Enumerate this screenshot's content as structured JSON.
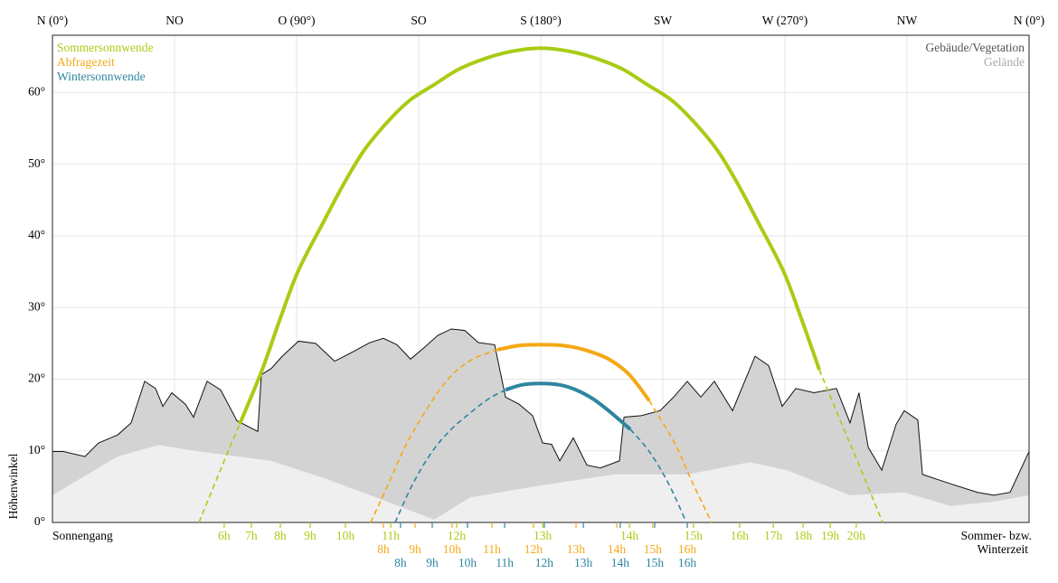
{
  "chart_data": {
    "type": "line",
    "ylabel": "Höhenwinkel",
    "row_label": "Sonnengang",
    "time_note": [
      "Sommer- bzw.",
      "Winterzeit"
    ],
    "xlim": [
      0,
      360
    ],
    "ylim": [
      0,
      68
    ],
    "grid": true,
    "xticks": [
      {
        "value": 0,
        "label": "N (0°)"
      },
      {
        "value": 45,
        "label": "NO"
      },
      {
        "value": 90,
        "label": "O (90°)"
      },
      {
        "value": 135,
        "label": "SO"
      },
      {
        "value": 180,
        "label": "S (180°)"
      },
      {
        "value": 225,
        "label": "SW"
      },
      {
        "value": 270,
        "label": "W (270°)"
      },
      {
        "value": 315,
        "label": "NW"
      },
      {
        "value": 360,
        "label": "N (0°)"
      }
    ],
    "yticks": [
      {
        "value": 0,
        "label": "0°"
      },
      {
        "value": 10,
        "label": "10°"
      },
      {
        "value": 20,
        "label": "20°"
      },
      {
        "value": 30,
        "label": "30°"
      },
      {
        "value": 40,
        "label": "40°"
      },
      {
        "value": 50,
        "label": "50°"
      },
      {
        "value": 60,
        "label": "60°"
      }
    ],
    "obstacles": [
      {
        "name": "Gebäude/Vegetation",
        "color": "#d3d3d3",
        "label_color": "#555555",
        "x": [
          0,
          4,
          12,
          17,
          24,
          29,
          34,
          38,
          40.7,
          44,
          49,
          52,
          57,
          62,
          68,
          75.7,
          77,
          80.7,
          84.7,
          90.7,
          97,
          104,
          110.7,
          117,
          122,
          127,
          132,
          137,
          142,
          147,
          152,
          157,
          163,
          167,
          172,
          177,
          180.7,
          184,
          187,
          192,
          197,
          202,
          209,
          210.7,
          217,
          224,
          229,
          234,
          239,
          244,
          250.7,
          259,
          264,
          269,
          274,
          280.7,
          289,
          294,
          297.3,
          300.7,
          305.7,
          311,
          314,
          319,
          320.7,
          331,
          341,
          347,
          353,
          360
        ],
        "values": [
          9.9,
          9.9,
          9.2,
          11.1,
          12.2,
          13.9,
          19.7,
          18.7,
          16.2,
          18.1,
          16.5,
          14.7,
          19.7,
          18.5,
          14.2,
          12.7,
          20.6,
          21.5,
          23.2,
          25.3,
          25,
          22.5,
          23.8,
          25.1,
          25.7,
          24.8,
          22.8,
          24.4,
          26.1,
          27,
          26.8,
          25.1,
          24.8,
          17.5,
          16.5,
          14.9,
          11.1,
          10.9,
          8.6,
          11.8,
          8,
          7.6,
          8.6,
          14.7,
          14.9,
          15.6,
          17.5,
          19.7,
          17.5,
          19.7,
          15.6,
          23.2,
          21.9,
          16.2,
          18.7,
          18.1,
          18.7,
          13.9,
          18.1,
          10.5,
          7.3,
          13.7,
          15.6,
          14.3,
          6.7,
          5.4,
          4.2,
          3.8,
          4.2,
          9.9
        ]
      },
      {
        "name": "Gelände",
        "color": "#efefef",
        "label_color": "#aaaaaa",
        "x": [
          0,
          24,
          39,
          54,
          80.7,
          100.7,
          120.7,
          140.7,
          154,
          180.7,
          207,
          234,
          257,
          270.7,
          294,
          314,
          331,
          347,
          360
        ],
        "values": [
          3.8,
          9.2,
          10.8,
          9.9,
          8.6,
          6.1,
          3.3,
          0.4,
          3.5,
          5.2,
          6.7,
          6.7,
          8.4,
          7.3,
          3.8,
          4.2,
          2.3,
          2.9,
          3.8
        ]
      }
    ],
    "series": [
      {
        "name": "Sommersonnwende",
        "color": "#a8cc14",
        "x": [
          54,
          63.3,
          69,
          77.3,
          84,
          90.7,
          100,
          107.3,
          115,
          124,
          132,
          140.7,
          150,
          160.7,
          170,
          180,
          190,
          199.3,
          210,
          219.3,
          228,
          236,
          245,
          252.7,
          260,
          269.3,
          276,
          282.7,
          291,
          296.7,
          306
        ],
        "values": [
          0,
          8.6,
          13.7,
          21.3,
          28.5,
          35.2,
          42,
          47.2,
          52,
          56.1,
          59,
          61.1,
          63.3,
          64.9,
          65.8,
          66.2,
          65.8,
          64.9,
          63.3,
          61.1,
          59,
          56.1,
          52,
          47.2,
          42,
          35.2,
          28.5,
          21.3,
          13.7,
          8.6,
          0
        ],
        "hour_ticks": [
          {
            "value": 63.3,
            "label": "6h"
          },
          {
            "value": 73.3,
            "label": "7h"
          },
          {
            "value": 84,
            "label": "8h"
          },
          {
            "value": 95,
            "label": "9h"
          },
          {
            "value": 108,
            "label": "10h"
          },
          {
            "value": 124.7,
            "label": "11h"
          },
          {
            "value": 149,
            "label": "12h"
          },
          {
            "value": 180.7,
            "label": "13h"
          },
          {
            "value": 212.7,
            "label": "14h"
          },
          {
            "value": 236.3,
            "label": "15h"
          },
          {
            "value": 253.3,
            "label": "16h"
          },
          {
            "value": 265.7,
            "label": "17h"
          },
          {
            "value": 276.7,
            "label": "18h"
          },
          {
            "value": 286.7,
            "label": "19h"
          },
          {
            "value": 296.3,
            "label": "20h"
          }
        ]
      },
      {
        "name": "Abfragezeit",
        "color": "#f5a815",
        "x": [
          117.3,
          124,
          130.7,
          140,
          147.3,
          155,
          164,
          172,
          180,
          188,
          196,
          205,
          212.7,
          220,
          229.3,
          236,
          243
        ],
        "values": [
          0,
          5.5,
          11.1,
          17,
          20.6,
          22.8,
          24.1,
          24.7,
          24.8,
          24.7,
          24.1,
          22.8,
          20.6,
          17,
          11.1,
          5.5,
          0
        ],
        "hour_ticks": [
          {
            "value": 122,
            "label": "8h"
          },
          {
            "value": 133.7,
            "label": "9h"
          },
          {
            "value": 147.3,
            "label": "10h"
          },
          {
            "value": 162,
            "label": "11h"
          },
          {
            "value": 177.3,
            "label": "12h"
          },
          {
            "value": 193,
            "label": "13h"
          },
          {
            "value": 208,
            "label": "14h"
          },
          {
            "value": 221.3,
            "label": "15h"
          },
          {
            "value": 234,
            "label": "16h"
          }
        ]
      },
      {
        "name": "Wintersonnwende",
        "color": "#2e86a0",
        "x": [
          126.3,
          133,
          140,
          147,
          155,
          161,
          167,
          173,
          180,
          187,
          193,
          199,
          205,
          213,
          220,
          227,
          233.7
        ],
        "values": [
          0,
          5.5,
          9.9,
          13,
          15.6,
          17.3,
          18.5,
          19.2,
          19.4,
          19.2,
          18.5,
          17.3,
          15.6,
          13,
          9.9,
          5.5,
          0
        ],
        "hour_ticks": [
          {
            "value": 128.3,
            "label": "8h"
          },
          {
            "value": 140,
            "label": "9h"
          },
          {
            "value": 153,
            "label": "10h"
          },
          {
            "value": 166.7,
            "label": "11h"
          },
          {
            "value": 181.3,
            "label": "12h"
          },
          {
            "value": 195.7,
            "label": "13h"
          },
          {
            "value": 209.3,
            "label": "14h"
          },
          {
            "value": 222,
            "label": "15h"
          },
          {
            "value": 234,
            "label": "16h"
          }
        ]
      }
    ]
  }
}
